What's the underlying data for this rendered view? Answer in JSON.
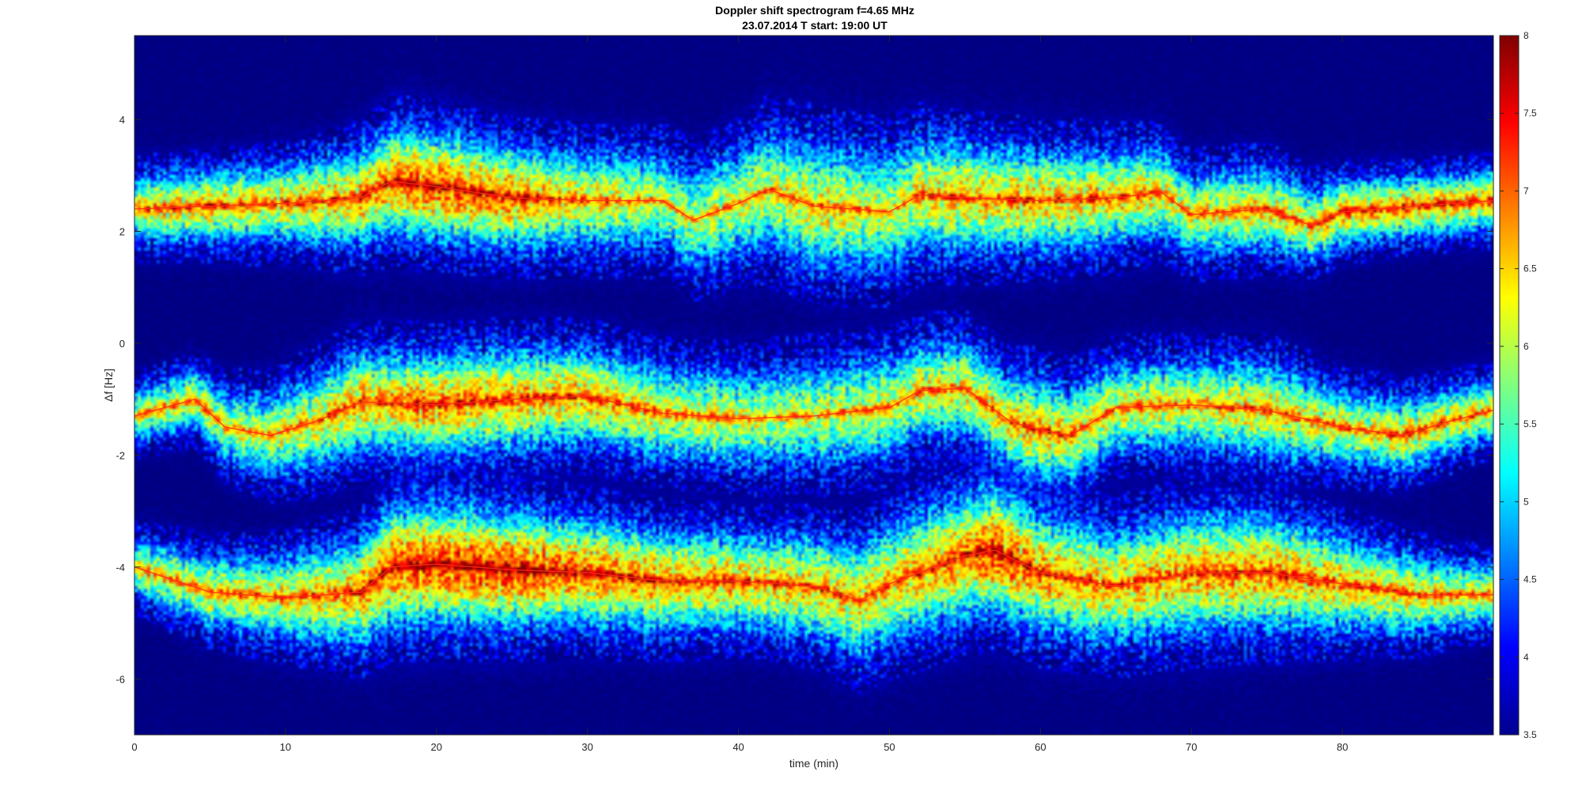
{
  "chart_data": {
    "type": "heatmap",
    "title": "Doppler shift spectrogram f=4.65 MHz",
    "subtitle": "23.07.2014   T start: 19:00 UT",
    "xlabel": "time (min)",
    "ylabel": "Δf [Hz]",
    "xlim": [
      0,
      90
    ],
    "ylim": [
      -7,
      5.5
    ],
    "x_ticks": [
      0,
      10,
      20,
      30,
      40,
      50,
      60,
      70,
      80
    ],
    "x_tick_labels": [
      "0",
      "10",
      "20",
      "30",
      "40",
      "50",
      "60",
      "70",
      "80"
    ],
    "y_ticks": [
      4,
      2,
      0,
      -2,
      -4,
      -6
    ],
    "y_tick_labels": [
      "4",
      "2",
      "0",
      "-2",
      "-4",
      "-6"
    ],
    "colorbar": {
      "colormap": "jet",
      "range": [
        3.5,
        8
      ],
      "ticks": [
        8,
        7.5,
        7,
        6.5,
        6,
        5.5,
        5,
        4.5,
        4,
        3.5
      ],
      "tick_labels": [
        "8",
        "7.5",
        "7",
        "6.5",
        "6",
        "5.5",
        "5",
        "4.5",
        "4",
        "3.5"
      ]
    },
    "background_level": 3.5,
    "series": [
      {
        "x": [
          0,
          5,
          10,
          15,
          17,
          20,
          25,
          30,
          35,
          37,
          40,
          42,
          45,
          50,
          52,
          55,
          60,
          65,
          68,
          70,
          75,
          78,
          80,
          85,
          90
        ],
        "y": [
          2.4,
          2.45,
          2.5,
          2.6,
          2.9,
          2.8,
          2.6,
          2.55,
          2.55,
          2.2,
          2.5,
          2.75,
          2.45,
          2.35,
          2.65,
          2.6,
          2.55,
          2.6,
          2.7,
          2.3,
          2.4,
          2.1,
          2.35,
          2.45,
          2.55
        ],
        "width": [
          0.55,
          0.6,
          0.65,
          0.8,
          0.9,
          0.9,
          0.85,
          0.8,
          0.8,
          0.85,
          0.9,
          1.0,
          1.05,
          1.0,
          0.95,
          0.9,
          0.85,
          0.8,
          0.75,
          0.7,
          0.7,
          0.6,
          0.55,
          0.5,
          0.5
        ],
        "peak": [
          6.3,
          6.5,
          6.4,
          6.7,
          6.9,
          7.1,
          6.8,
          6.3,
          6.0,
          6.0,
          6.1,
          6.2,
          6.3,
          6.1,
          6.4,
          6.5,
          6.5,
          6.4,
          6.3,
          6.2,
          6.4,
          6.3,
          6.6,
          6.6,
          6.5
        ]
      },
      {
        "x": [
          0,
          4,
          6,
          9,
          12,
          15,
          20,
          25,
          30,
          35,
          40,
          45,
          50,
          52,
          55,
          58,
          60,
          62,
          65,
          70,
          75,
          80,
          84,
          87,
          90
        ],
        "y": [
          -1.3,
          -1.0,
          -1.5,
          -1.65,
          -1.4,
          -1.05,
          -1.1,
          -1.0,
          -0.95,
          -1.25,
          -1.35,
          -1.3,
          -1.15,
          -0.85,
          -0.8,
          -1.4,
          -1.55,
          -1.65,
          -1.15,
          -1.1,
          -1.2,
          -1.5,
          -1.65,
          -1.4,
          -1.2
        ],
        "width": [
          0.45,
          0.5,
          0.6,
          0.7,
          0.8,
          0.85,
          0.85,
          0.85,
          0.8,
          0.8,
          0.8,
          0.85,
          0.85,
          0.8,
          0.8,
          0.8,
          0.85,
          0.8,
          0.75,
          0.75,
          0.8,
          0.65,
          0.6,
          0.55,
          0.5
        ],
        "peak": [
          6.0,
          6.3,
          6.0,
          6.1,
          6.3,
          6.6,
          6.8,
          6.6,
          6.6,
          6.2,
          6.1,
          6.0,
          6.2,
          6.3,
          6.3,
          6.4,
          6.5,
          6.4,
          6.2,
          6.3,
          6.4,
          6.2,
          6.4,
          6.3,
          6.2
        ]
      },
      {
        "x": [
          0,
          5,
          10,
          15,
          17,
          20,
          25,
          30,
          35,
          40,
          45,
          48,
          50,
          55,
          57,
          60,
          65,
          70,
          75,
          80,
          85,
          88,
          90
        ],
        "y": [
          -4.0,
          -4.45,
          -4.55,
          -4.45,
          -4.0,
          -3.95,
          -4.05,
          -4.1,
          -4.25,
          -4.25,
          -4.35,
          -4.6,
          -4.3,
          -3.8,
          -3.7,
          -4.1,
          -4.35,
          -4.1,
          -4.1,
          -4.3,
          -4.5,
          -4.5,
          -4.5
        ],
        "width": [
          0.5,
          0.6,
          0.7,
          0.9,
          1.0,
          1.0,
          0.95,
          0.9,
          0.85,
          0.8,
          0.85,
          0.95,
          1.0,
          1.05,
          1.05,
          1.0,
          0.95,
          1.0,
          0.95,
          0.8,
          0.65,
          0.55,
          0.5
        ],
        "peak": [
          6.0,
          6.3,
          6.3,
          6.7,
          7.1,
          7.2,
          7.2,
          6.9,
          6.7,
          6.6,
          6.5,
          6.4,
          6.5,
          6.8,
          7.2,
          6.7,
          6.5,
          6.7,
          6.8,
          6.5,
          6.3,
          6.3,
          6.3
        ]
      }
    ]
  }
}
